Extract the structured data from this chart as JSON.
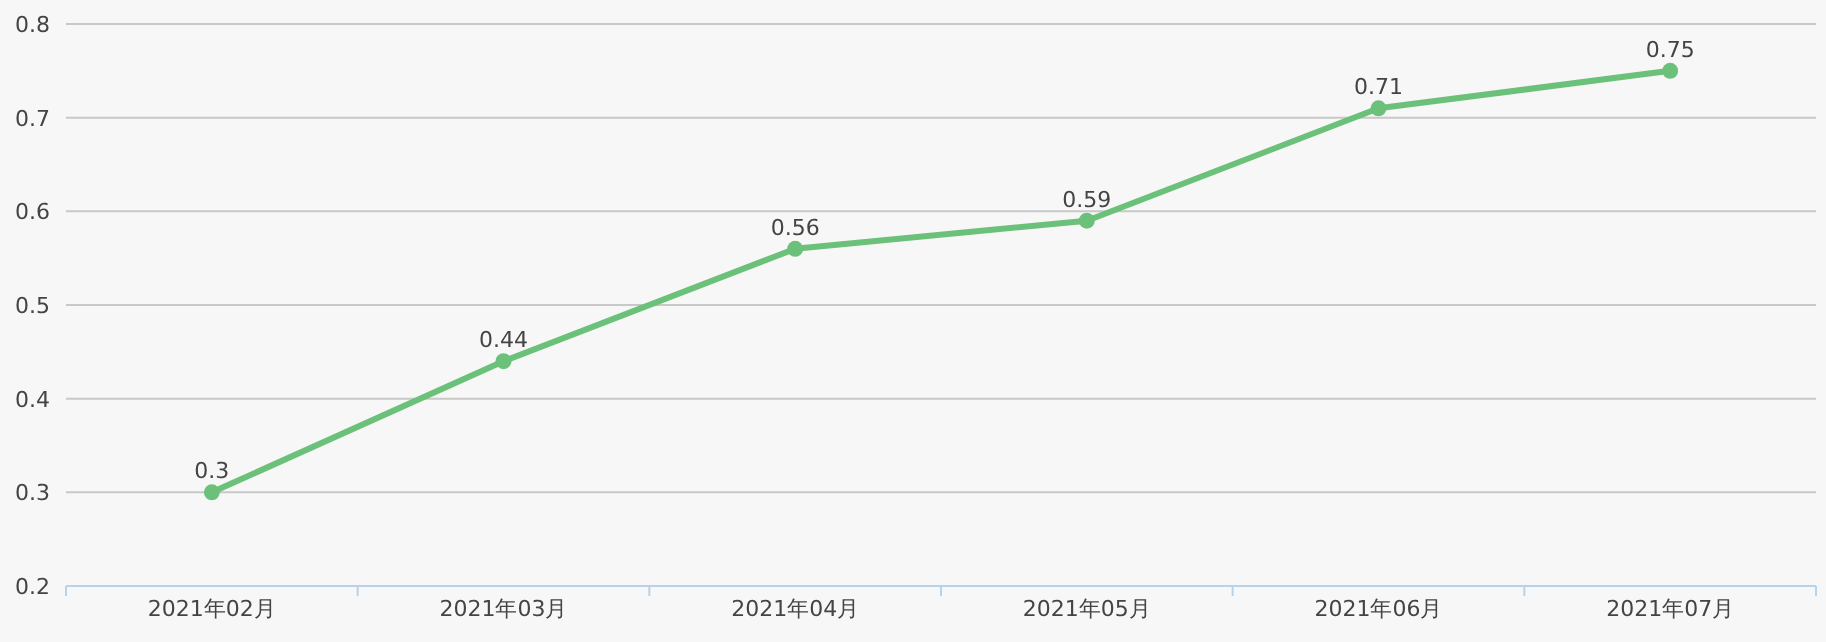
{
  "chart_data": {
    "type": "line",
    "categories": [
      "2021年02月",
      "2021年03月",
      "2021年04月",
      "2021年05月",
      "2021年06月",
      "2021年07月"
    ],
    "values": [
      0.3,
      0.44,
      0.56,
      0.59,
      0.71,
      0.75
    ],
    "color": "#6cc17a",
    "ylim": [
      0.2,
      0.8
    ],
    "yticks": [
      0.2,
      0.3,
      0.4,
      0.5,
      0.6,
      0.7,
      0.8
    ],
    "grid": "y",
    "data_labels": true,
    "marker": "circle",
    "line_style": "solid"
  }
}
